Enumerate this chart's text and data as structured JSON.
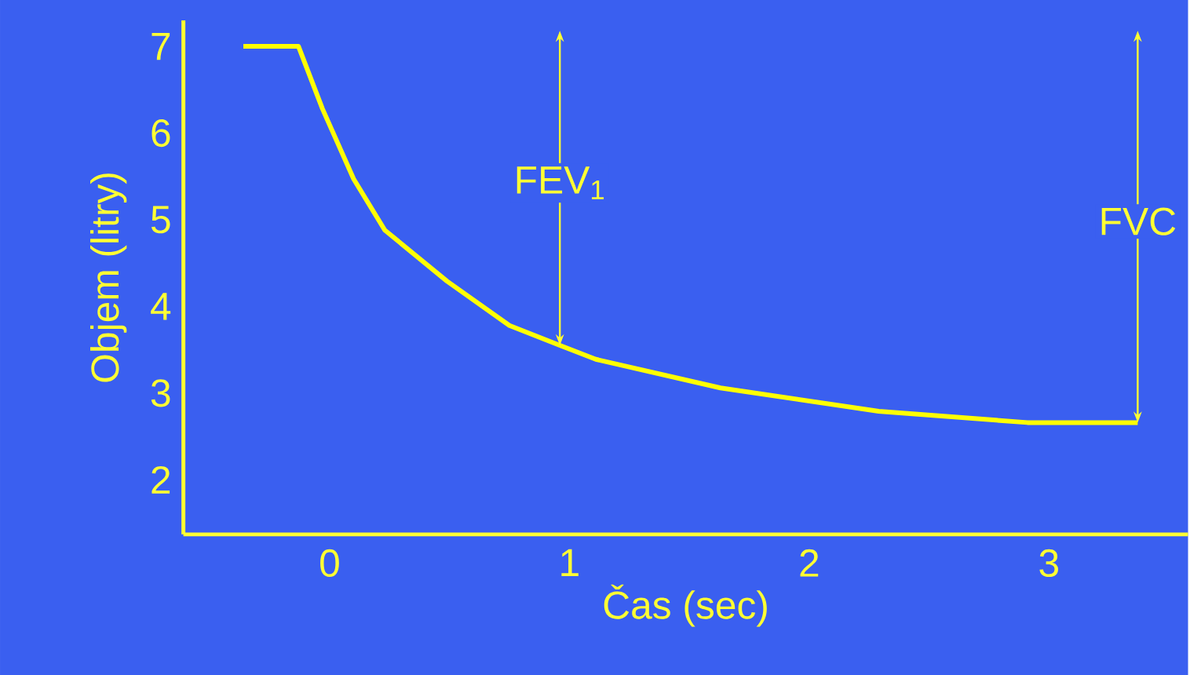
{
  "chart_data": {
    "type": "line",
    "xlabel": "Čas (sec)",
    "ylabel": "Objem (litry)",
    "x": [
      -0.36,
      -0.13,
      -0.03,
      0.1,
      0.23,
      0.49,
      0.75,
      0.96,
      1.11,
      1.63,
      2.29,
      2.91,
      3.37
    ],
    "series": [
      {
        "color": "#ffff00",
        "values": [
          7,
          7,
          6.28,
          5.47,
          4.88,
          4.29,
          3.78,
          3.55,
          3.39,
          3.06,
          2.79,
          2.66,
          2.66
        ]
      }
    ],
    "xlim": [
      -0.61,
      3.58
    ],
    "ylim": [
      1.37,
      7.3
    ],
    "xticks": [
      0,
      1,
      2,
      3
    ],
    "yticks": [
      2,
      3,
      4,
      5,
      6,
      7
    ],
    "marker": "none",
    "line_style": "solid",
    "annotations": [
      {
        "text": "FEV$_{1}$",
        "x": 0.96,
        "y": 3.55
      },
      {
        "text": "FVC",
        "x": 3.37,
        "y": 2.66
      }
    ]
  }
}
